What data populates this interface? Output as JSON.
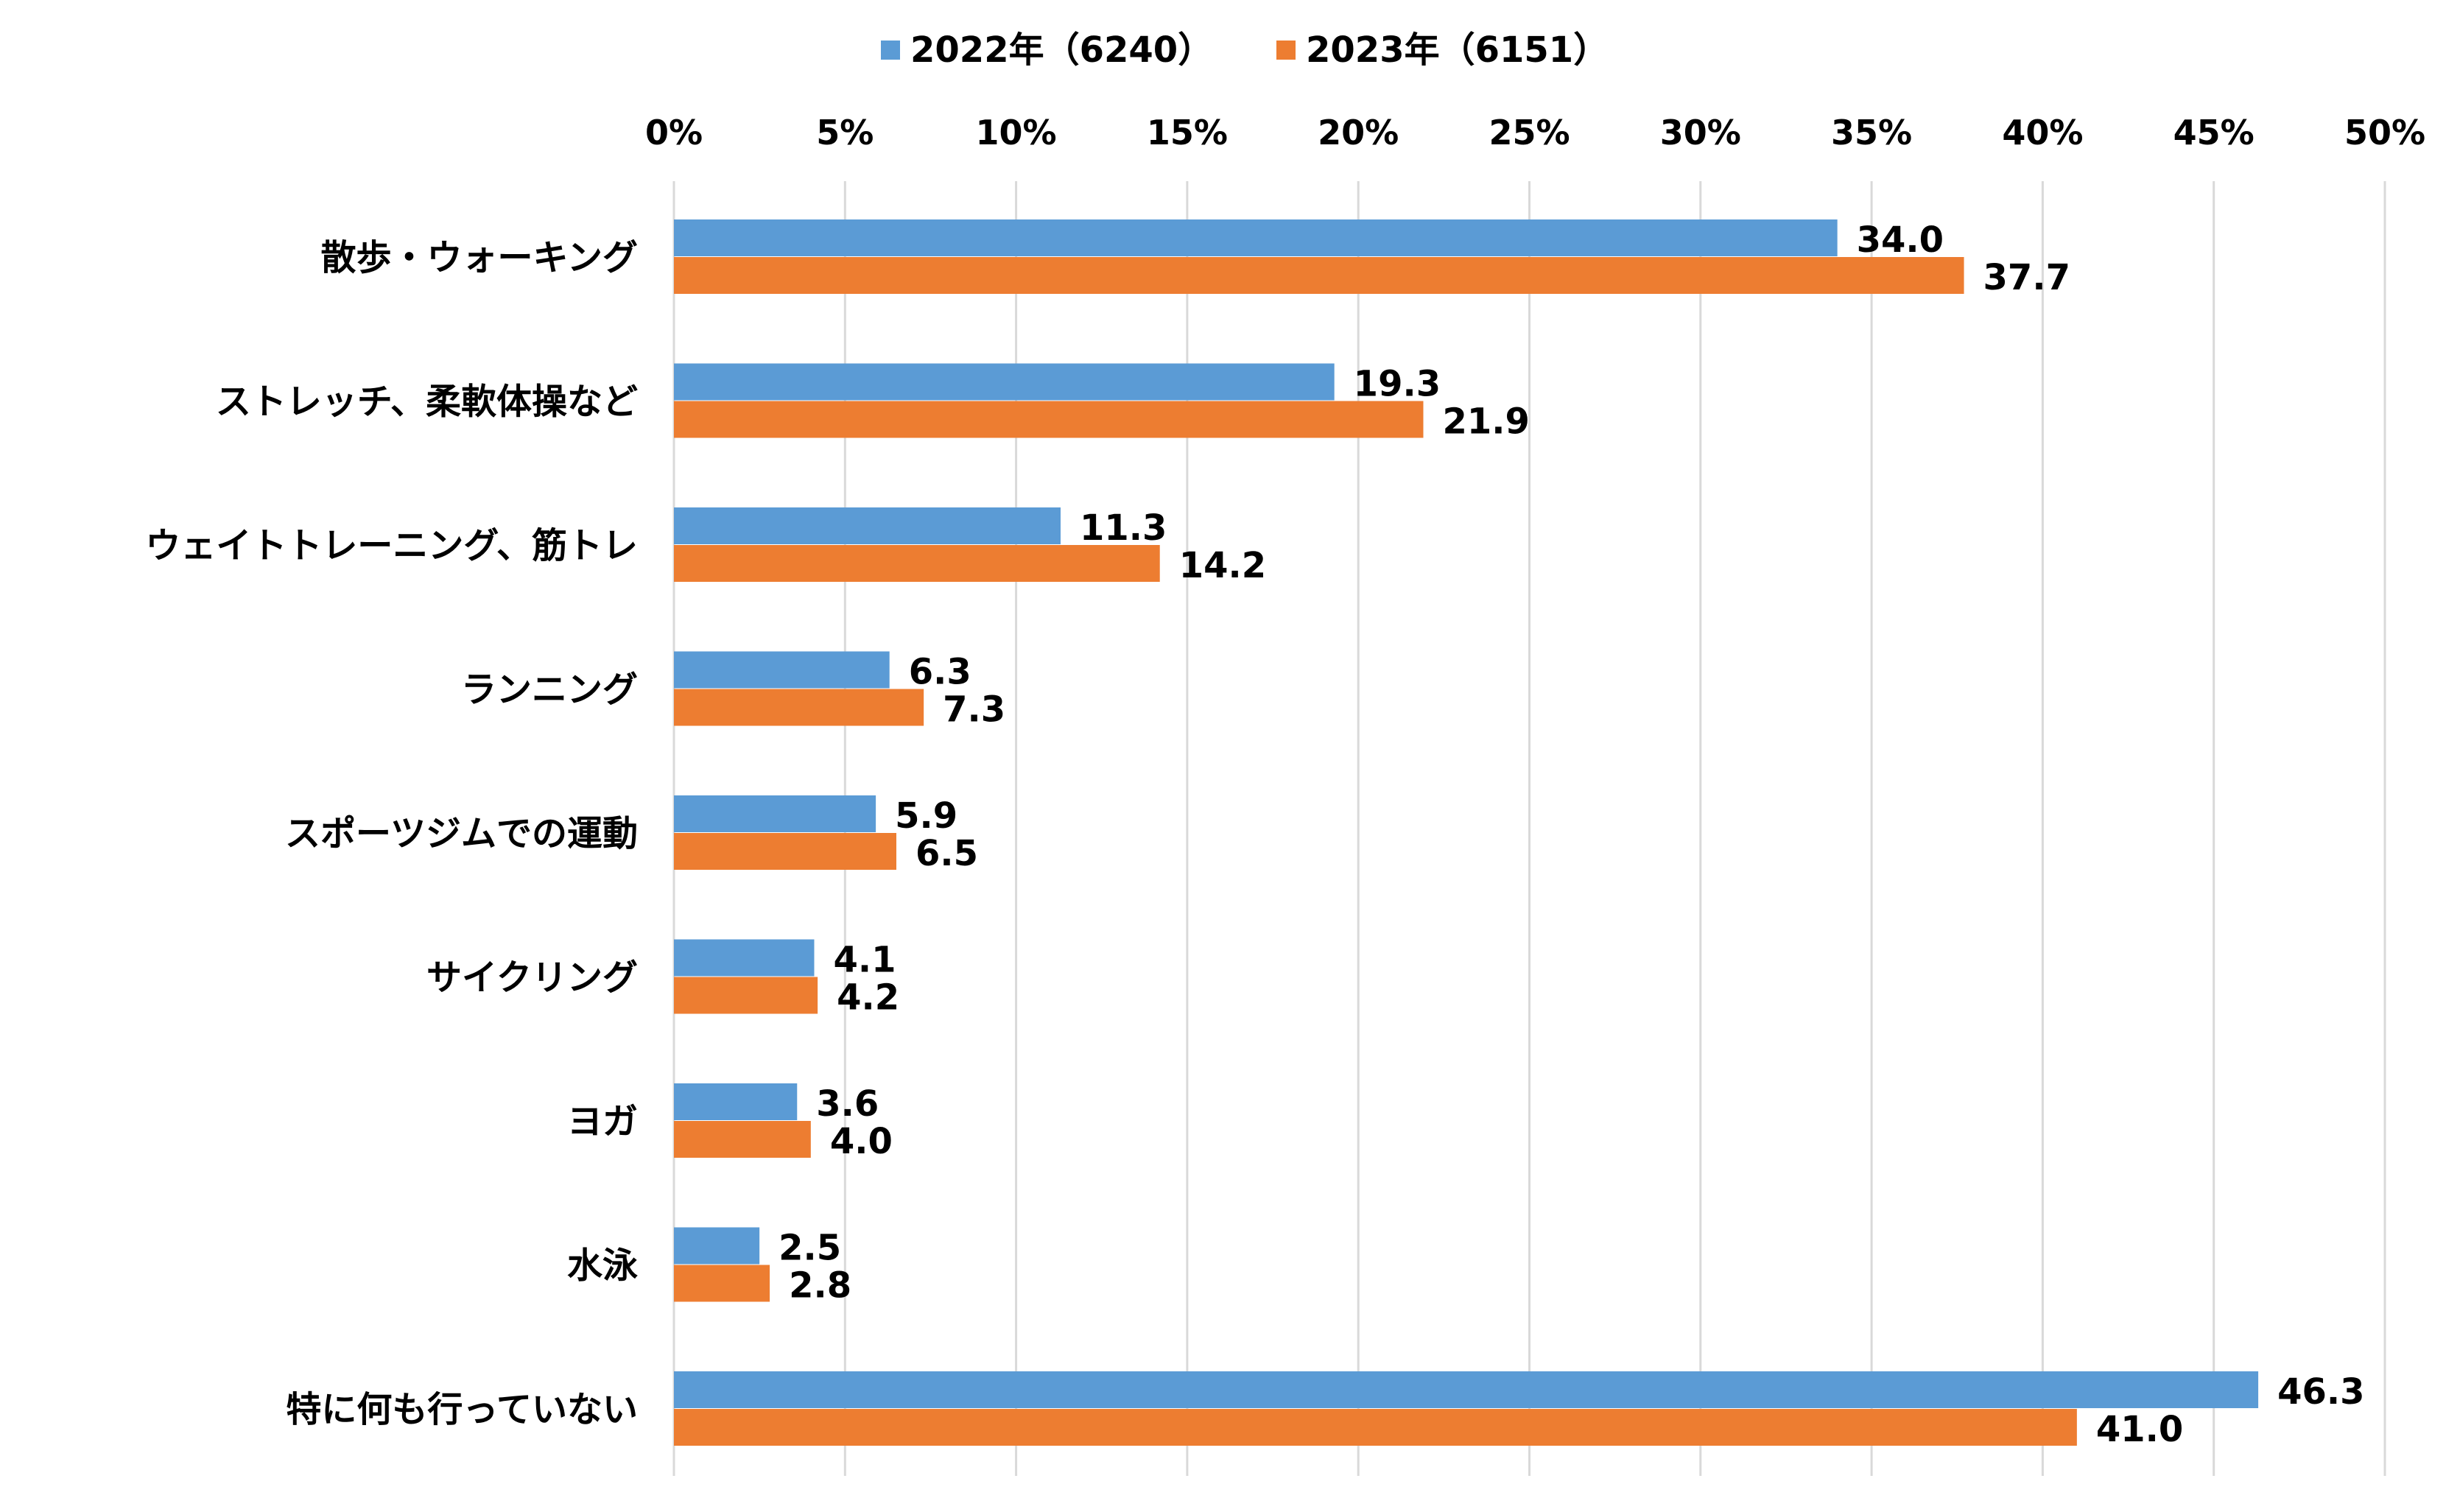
{
  "chart_data": {
    "type": "bar",
    "orientation": "horizontal",
    "title": "",
    "xlabel": "",
    "ylabel": "",
    "xlim": [
      0,
      50
    ],
    "x_ticks": [
      "0%",
      "5%",
      "10%",
      "15%",
      "20%",
      "25%",
      "30%",
      "35%",
      "40%",
      "45%",
      "50%"
    ],
    "x_axis_position": "top",
    "grid": "vertical",
    "legend_position": "top-center",
    "categories": [
      "散歩・ウォーキング",
      "ストレッチ、柔軟体操など",
      "ウェイトトレーニング、筋トレ",
      "ランニング",
      "スポーツジムでの運動",
      "サイクリング",
      "ヨガ",
      "水泳",
      "特に何も行っていない"
    ],
    "series": [
      {
        "name": "2022年（6240）",
        "color": "#5b9bd5",
        "values": [
          34.0,
          19.3,
          11.3,
          6.3,
          5.9,
          4.1,
          3.6,
          2.5,
          46.3
        ],
        "labels": [
          "34.0",
          "19.3",
          "11.3",
          "6.3",
          "5.9",
          "4.1",
          "3.6",
          "2.5",
          "46.3"
        ]
      },
      {
        "name": "2023年（6151）",
        "color": "#ed7d31",
        "values": [
          37.7,
          21.9,
          14.2,
          7.3,
          6.5,
          4.2,
          4.0,
          2.8,
          41.0
        ],
        "labels": [
          "37.7",
          "21.9",
          "14.2",
          "7.3",
          "6.5",
          "4.2",
          "4.0",
          "2.8",
          "41.0"
        ]
      }
    ],
    "colors": {
      "grid": "#d9d9d9",
      "text": "#000000"
    }
  }
}
